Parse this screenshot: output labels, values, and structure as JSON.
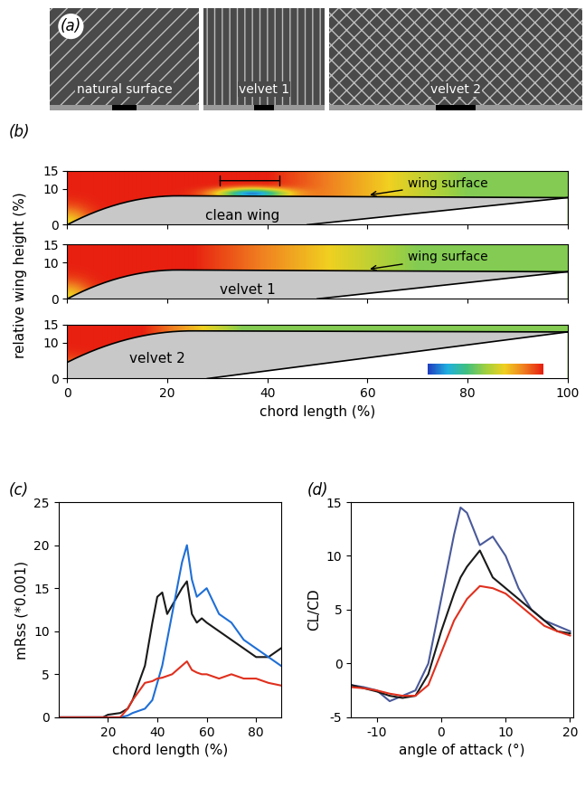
{
  "panel_a": {
    "panel_label": "(a)",
    "images": [
      "natural surface",
      "velvet 1",
      "velvet 2"
    ]
  },
  "panel_b": {
    "panel_label": "(b)",
    "xlabel": "chord length (%)",
    "ylabel": "relative wing height (%)",
    "xlim": [
      0,
      100
    ],
    "xticks": [
      0,
      20,
      40,
      60,
      80,
      100
    ],
    "ylim": [
      0,
      15
    ],
    "yticks": [
      0,
      10,
      15
    ],
    "panels": [
      {
        "name": "clean wing",
        "annotation": "wing surface"
      },
      {
        "name": "velvet 1",
        "annotation": "wing surface"
      },
      {
        "name": "velvet 2"
      }
    ]
  },
  "chart_data": [
    {
      "type": "line",
      "panel_label": "(c)",
      "xlabel": "chord length (%)",
      "ylabel": "mRss (*0.001)",
      "x": [
        0,
        10,
        18,
        20,
        25,
        28,
        30,
        35,
        38,
        40,
        42,
        44,
        46,
        48,
        50,
        52,
        54,
        56,
        58,
        60,
        65,
        70,
        75,
        80,
        85,
        90
      ],
      "xlim": [
        0,
        90
      ],
      "xticks": [
        20,
        40,
        60,
        80
      ],
      "ylim": [
        0,
        25
      ],
      "yticks": [
        0,
        5,
        10,
        15,
        20,
        25
      ],
      "series": [
        {
          "color": "#1a1a1a",
          "values": [
            0,
            0,
            0,
            0.3,
            0.5,
            1,
            2,
            6,
            11,
            14,
            14.5,
            12,
            13,
            14,
            15,
            15.8,
            12,
            11,
            11.5,
            11,
            10,
            9,
            8,
            7,
            7,
            8
          ]
        },
        {
          "color": "#1f6fd6",
          "values": [
            0,
            0,
            0,
            0,
            0,
            0.2,
            0.5,
            1,
            2,
            4,
            6,
            9,
            12,
            15,
            18,
            20,
            16,
            14,
            14.5,
            15,
            12,
            11,
            9,
            8,
            7,
            6
          ]
        },
        {
          "color": "#e0301e",
          "values": [
            0,
            0,
            0,
            0,
            0,
            1,
            2,
            4,
            4.2,
            4.5,
            4.6,
            4.8,
            5,
            5.5,
            6,
            6.5,
            5.5,
            5.2,
            5,
            5,
            4.5,
            5,
            4.5,
            4.5,
            4,
            3.7
          ]
        }
      ]
    },
    {
      "type": "line",
      "panel_label": "(d)",
      "xlabel": "angle of attack (°)",
      "ylabel": "CL/CD",
      "x": [
        -14,
        -12,
        -10,
        -8,
        -6,
        -4,
        -2,
        0,
        2,
        3,
        4,
        6,
        8,
        10,
        12,
        14,
        16,
        18,
        20
      ],
      "xlim": [
        -14,
        20.5
      ],
      "xticks": [
        -10,
        0,
        10,
        20
      ],
      "ylim": [
        -5,
        15
      ],
      "yticks": [
        -5,
        0,
        5,
        10,
        15
      ],
      "series": [
        {
          "color": "#4a5a9a",
          "values": [
            -2,
            -2.2,
            -2.5,
            -3.5,
            -3,
            -2.5,
            0,
            6,
            12,
            14.5,
            14,
            11,
            11.8,
            10,
            7,
            5,
            4,
            3.5,
            3
          ]
        },
        {
          "color": "#1a1a1a",
          "values": [
            -2,
            -2.3,
            -2.6,
            -3,
            -3.2,
            -3,
            -1,
            3,
            6.5,
            8,
            9,
            10.5,
            8,
            7,
            6,
            5,
            4,
            3,
            2.8
          ]
        },
        {
          "color": "#e0301e",
          "values": [
            -2.2,
            -2.3,
            -2.5,
            -2.8,
            -3,
            -3,
            -2,
            1,
            4,
            5,
            6,
            7.2,
            7,
            6.5,
            5.5,
            4.5,
            3.5,
            3,
            2.6
          ]
        }
      ]
    }
  ]
}
